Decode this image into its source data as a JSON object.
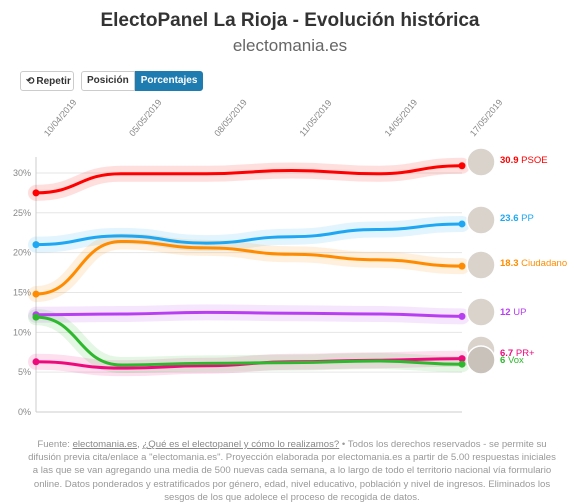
{
  "header": {
    "title": "ElectoPanel La Rioja - Evolución histórica",
    "subtitle": "electomania.es"
  },
  "controls": {
    "repeat_label": "Repetir",
    "position_label": "Posición",
    "percent_label": "Porcentajes"
  },
  "footer": {
    "source_prefix": "Fuente: ",
    "source_link": "electomania.es",
    "sep": ", ",
    "faq_link": "¿Qué es el electopanel y cómo lo realizamos?",
    "body": " • Todos los derechos reservados - se permite su difusión previa cita/enlace a \"electomania.es\". Proyección elaborada por electomania.es a partir de 5.00 respuestas iniciales a las que se van agregando una media de 500 nuevas cada semana, a lo largo de todo el territorio nacional vía formulario online. Datos ponderados y estratificados por género, edad, nivel educativo, población y nivel de ingresos. Eliminados los sesgos de los que adolece el proceso de recogida de datos."
  },
  "chart_data": {
    "type": "line",
    "x": [
      "10/04/2019",
      "05/05/2019",
      "08/05/2019",
      "11/05/2019",
      "14/05/2019",
      "17/05/2019"
    ],
    "ylim": [
      0,
      32
    ],
    "yticks": [
      "0%",
      "5%",
      "10%",
      "15%",
      "20%",
      "25%",
      "30%"
    ],
    "grid": true,
    "series": [
      {
        "name": "PSOE",
        "color": "#ff0000",
        "end_label": "30.9",
        "values": [
          27.5,
          29.9,
          29.9,
          30.3,
          29.9,
          30.9
        ]
      },
      {
        "name": "PP",
        "color": "#1ea7f2",
        "end_label": "23.6",
        "values": [
          21.0,
          22.1,
          21.2,
          22.0,
          22.9,
          23.6
        ]
      },
      {
        "name": "Ciudadano",
        "color": "#ff8c00",
        "end_label": "18.3",
        "values": [
          14.8,
          21.4,
          20.6,
          19.8,
          19.1,
          18.3
        ]
      },
      {
        "name": "UP",
        "color": "#b83ff1",
        "end_label": "12",
        "values": [
          12.2,
          12.3,
          12.5,
          12.4,
          12.3,
          12.0
        ]
      },
      {
        "name": "PR+",
        "color": "#ee0a7d",
        "end_label": "6.7",
        "values": [
          6.3,
          5.5,
          5.8,
          6.3,
          6.5,
          6.7
        ]
      },
      {
        "name": "Vox",
        "color": "#2db82d",
        "end_label": "6",
        "values": [
          11.9,
          5.9,
          6.1,
          6.2,
          6.4,
          6.0
        ]
      }
    ]
  }
}
